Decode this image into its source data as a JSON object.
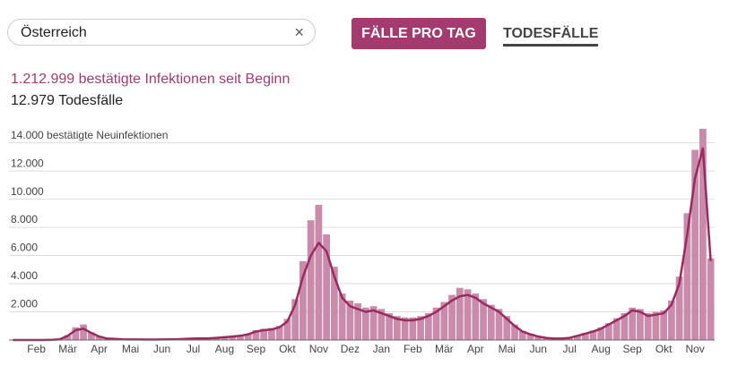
{
  "header": {
    "search": "Österreich",
    "clear": "×",
    "tabs": [
      "FÄLLE PRO TAG",
      "TODESFÄLLE"
    ]
  },
  "summary": {
    "infections": "1.212.999 bestätigte Infektionen seit Beginn",
    "deaths": "12.979 Todesfälle"
  },
  "chart_data": {
    "type": "bar",
    "categories": [
      null,
      null,
      null,
      "Feb",
      null,
      null,
      null,
      "Mär",
      null,
      null,
      null,
      "Apr",
      null,
      null,
      null,
      "Mai",
      null,
      null,
      null,
      "Jun",
      null,
      null,
      null,
      "Jul",
      null,
      null,
      null,
      "Aug",
      null,
      null,
      null,
      "Sep",
      null,
      null,
      null,
      "Okt",
      null,
      null,
      null,
      "Nov",
      null,
      null,
      null,
      "Dez",
      null,
      null,
      null,
      "Jan",
      null,
      null,
      null,
      "Feb",
      null,
      null,
      null,
      "Mär",
      null,
      null,
      null,
      "Apr",
      null,
      null,
      null,
      "Mai",
      null,
      null,
      null,
      "Jun",
      null,
      null,
      null,
      "Jul",
      null,
      null,
      null,
      "Aug",
      null,
      null,
      null,
      "Sep",
      null,
      null,
      null,
      "Okt",
      null,
      null,
      null,
      "Nov",
      null,
      null
    ],
    "series": [
      {
        "type": "bar",
        "color": "#c98aab",
        "values": [
          0,
          0,
          0,
          0,
          0,
          10,
          60,
          350,
          900,
          1100,
          550,
          280,
          120,
          90,
          60,
          45,
          40,
          35,
          35,
          45,
          55,
          70,
          90,
          110,
          120,
          130,
          170,
          220,
          280,
          340,
          450,
          700,
          800,
          850,
          1000,
          1500,
          2900,
          5600,
          8500,
          9600,
          7500,
          5200,
          3300,
          2800,
          2600,
          2300,
          2400,
          2200,
          1900,
          1700,
          1600,
          1600,
          1700,
          1900,
          2300,
          2700,
          3200,
          3700,
          3600,
          3300,
          2900,
          2500,
          2200,
          1700,
          1100,
          650,
          450,
          280,
          170,
          110,
          110,
          170,
          330,
          500,
          680,
          900,
          1200,
          1550,
          1900,
          2300,
          2200,
          1900,
          2000,
          2100,
          2800,
          4500,
          9000,
          13500,
          15000,
          5800
        ]
      },
      {
        "type": "line",
        "color": "#9b2a5e",
        "values": [
          0,
          0,
          0,
          0,
          0,
          10,
          50,
          300,
          700,
          800,
          500,
          250,
          100,
          80,
          50,
          40,
          40,
          30,
          30,
          40,
          50,
          60,
          80,
          100,
          110,
          120,
          150,
          200,
          250,
          300,
          400,
          600,
          700,
          750,
          900,
          1300,
          2500,
          4500,
          6000,
          6900,
          6300,
          4500,
          3000,
          2400,
          2200,
          2000,
          2100,
          1900,
          1700,
          1500,
          1400,
          1400,
          1500,
          1700,
          2000,
          2400,
          2800,
          3100,
          3200,
          3000,
          2600,
          2300,
          2000,
          1500,
          1000,
          600,
          400,
          250,
          150,
          100,
          100,
          150,
          300,
          450,
          600,
          800,
          1100,
          1400,
          1700,
          2100,
          2000,
          1700,
          1800,
          1900,
          2500,
          4000,
          7500,
          11500,
          13600,
          5600
        ]
      }
    ],
    "ylim": [
      0,
      15500
    ],
    "yticks": [
      {
        "value": 2000,
        "label": "2.000"
      },
      {
        "value": 4000,
        "label": "4.000"
      },
      {
        "value": 6000,
        "label": "6.000"
      },
      {
        "value": 8000,
        "label": "8.000"
      },
      {
        "value": 10000,
        "label": "10.000"
      },
      {
        "value": 12000,
        "label": "12.000"
      },
      {
        "value": 14000,
        "label": "14.000 bestätigte Neuinfektionen"
      }
    ],
    "grid": true
  }
}
